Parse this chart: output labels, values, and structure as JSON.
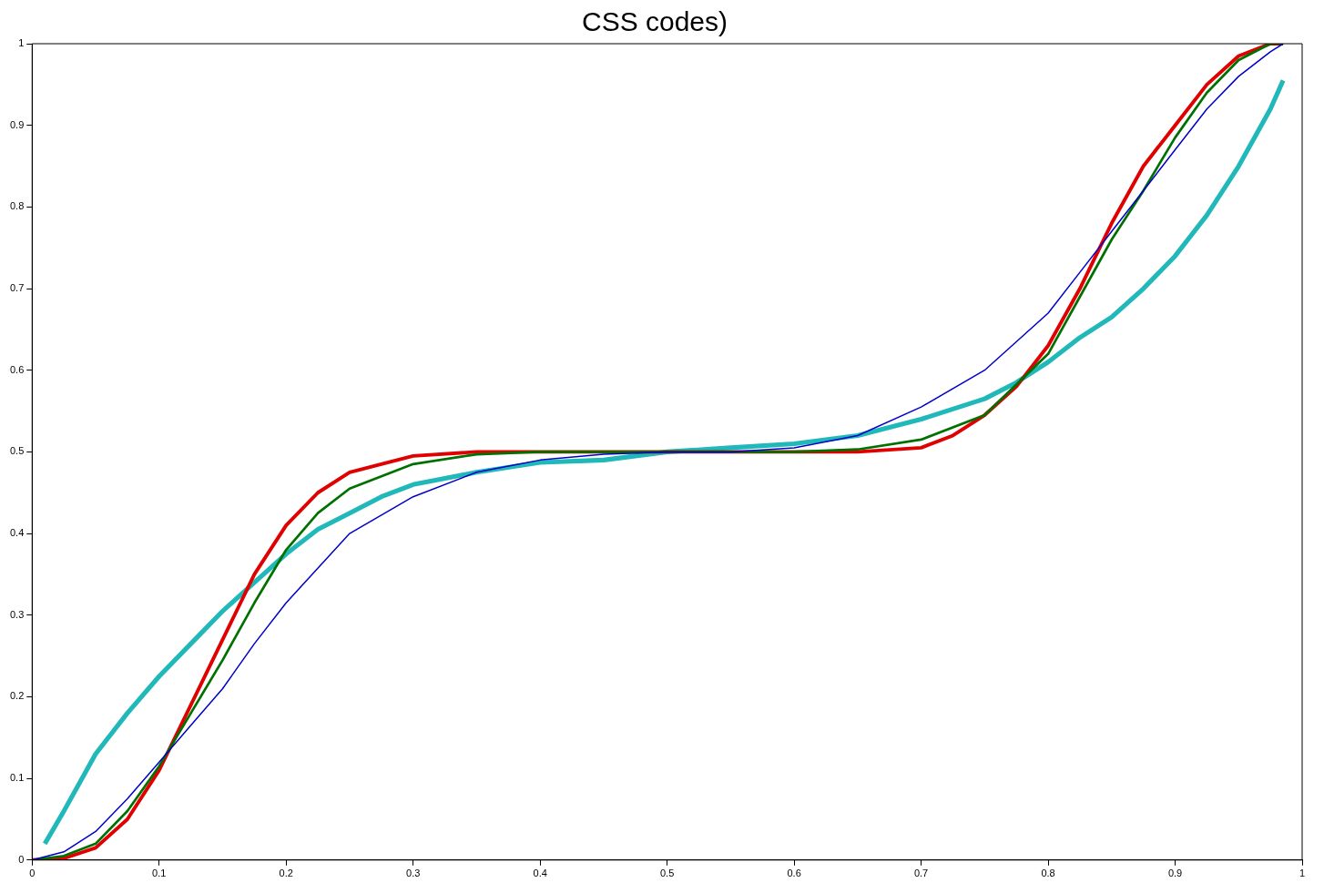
{
  "chart_data": {
    "type": "line",
    "title": "CSS codes)",
    "xlim": [
      0,
      1
    ],
    "xticks": [
      0,
      0.1,
      0.2,
      0.3,
      0.4,
      0.5,
      0.6,
      0.7,
      0.8,
      0.9,
      1
    ],
    "ylim": [
      0,
      1
    ],
    "yticks": [
      0,
      0.1,
      0.2,
      0.3,
      0.4,
      0.5,
      0.6,
      0.7,
      0.8,
      0.9,
      1
    ],
    "grid": false,
    "series": [
      {
        "color": "#0000c8",
        "x": [
          0,
          0.025,
          0.05,
          0.075,
          0.1,
          0.125,
          0.15,
          0.175,
          0.2,
          0.25,
          0.3,
          0.35,
          0.4,
          0.45,
          0.5,
          0.55,
          0.6,
          0.65,
          0.7,
          0.75,
          0.8,
          0.825,
          0.85,
          0.875,
          0.9,
          0.925,
          0.95,
          0.975,
          0.985
        ],
        "values": [
          0,
          0.01,
          0.035,
          0.075,
          0.12,
          0.165,
          0.21,
          0.265,
          0.315,
          0.4,
          0.445,
          0.475,
          0.49,
          0.497,
          0.5,
          0.5,
          0.505,
          0.52,
          0.555,
          0.6,
          0.67,
          0.72,
          0.77,
          0.82,
          0.87,
          0.92,
          0.96,
          0.99,
          1
        ]
      },
      {
        "color": "#007000",
        "x": [
          0,
          0.025,
          0.05,
          0.075,
          0.1,
          0.125,
          0.15,
          0.175,
          0.2,
          0.225,
          0.25,
          0.3,
          0.35,
          0.4,
          0.5,
          0.6,
          0.65,
          0.7,
          0.75,
          0.8,
          0.825,
          0.85,
          0.875,
          0.9,
          0.925,
          0.95,
          0.975,
          0.985
        ],
        "values": [
          0,
          0.005,
          0.02,
          0.06,
          0.115,
          0.18,
          0.245,
          0.315,
          0.38,
          0.425,
          0.455,
          0.485,
          0.497,
          0.5,
          0.5,
          0.5,
          0.503,
          0.515,
          0.545,
          0.62,
          0.69,
          0.76,
          0.82,
          0.885,
          0.94,
          0.98,
          1,
          1
        ]
      },
      {
        "color": "#e00000",
        "x": [
          0,
          0.025,
          0.05,
          0.075,
          0.1,
          0.125,
          0.15,
          0.175,
          0.2,
          0.225,
          0.25,
          0.3,
          0.35,
          0.5,
          0.65,
          0.7,
          0.725,
          0.75,
          0.775,
          0.8,
          0.825,
          0.85,
          0.875,
          0.9,
          0.925,
          0.95,
          0.975,
          0.985
        ],
        "values": [
          0,
          0.002,
          0.015,
          0.05,
          0.11,
          0.19,
          0.27,
          0.35,
          0.41,
          0.45,
          0.475,
          0.495,
          0.5,
          0.5,
          0.5,
          0.505,
          0.52,
          0.545,
          0.58,
          0.63,
          0.7,
          0.78,
          0.85,
          0.9,
          0.95,
          0.985,
          1,
          1
        ]
      },
      {
        "color": "#20b8b8",
        "x": [
          0.01,
          0.025,
          0.05,
          0.075,
          0.1,
          0.125,
          0.15,
          0.175,
          0.2,
          0.225,
          0.25,
          0.275,
          0.3,
          0.35,
          0.4,
          0.45,
          0.5,
          0.55,
          0.6,
          0.65,
          0.7,
          0.75,
          0.775,
          0.8,
          0.825,
          0.85,
          0.875,
          0.9,
          0.925,
          0.95,
          0.975,
          0.985
        ],
        "values": [
          0.02,
          0.06,
          0.13,
          0.18,
          0.225,
          0.265,
          0.305,
          0.34,
          0.375,
          0.405,
          0.425,
          0.445,
          0.46,
          0.475,
          0.487,
          0.49,
          0.5,
          0.505,
          0.51,
          0.52,
          0.54,
          0.565,
          0.585,
          0.61,
          0.64,
          0.665,
          0.7,
          0.74,
          0.79,
          0.85,
          0.92,
          0.955
        ]
      }
    ]
  }
}
